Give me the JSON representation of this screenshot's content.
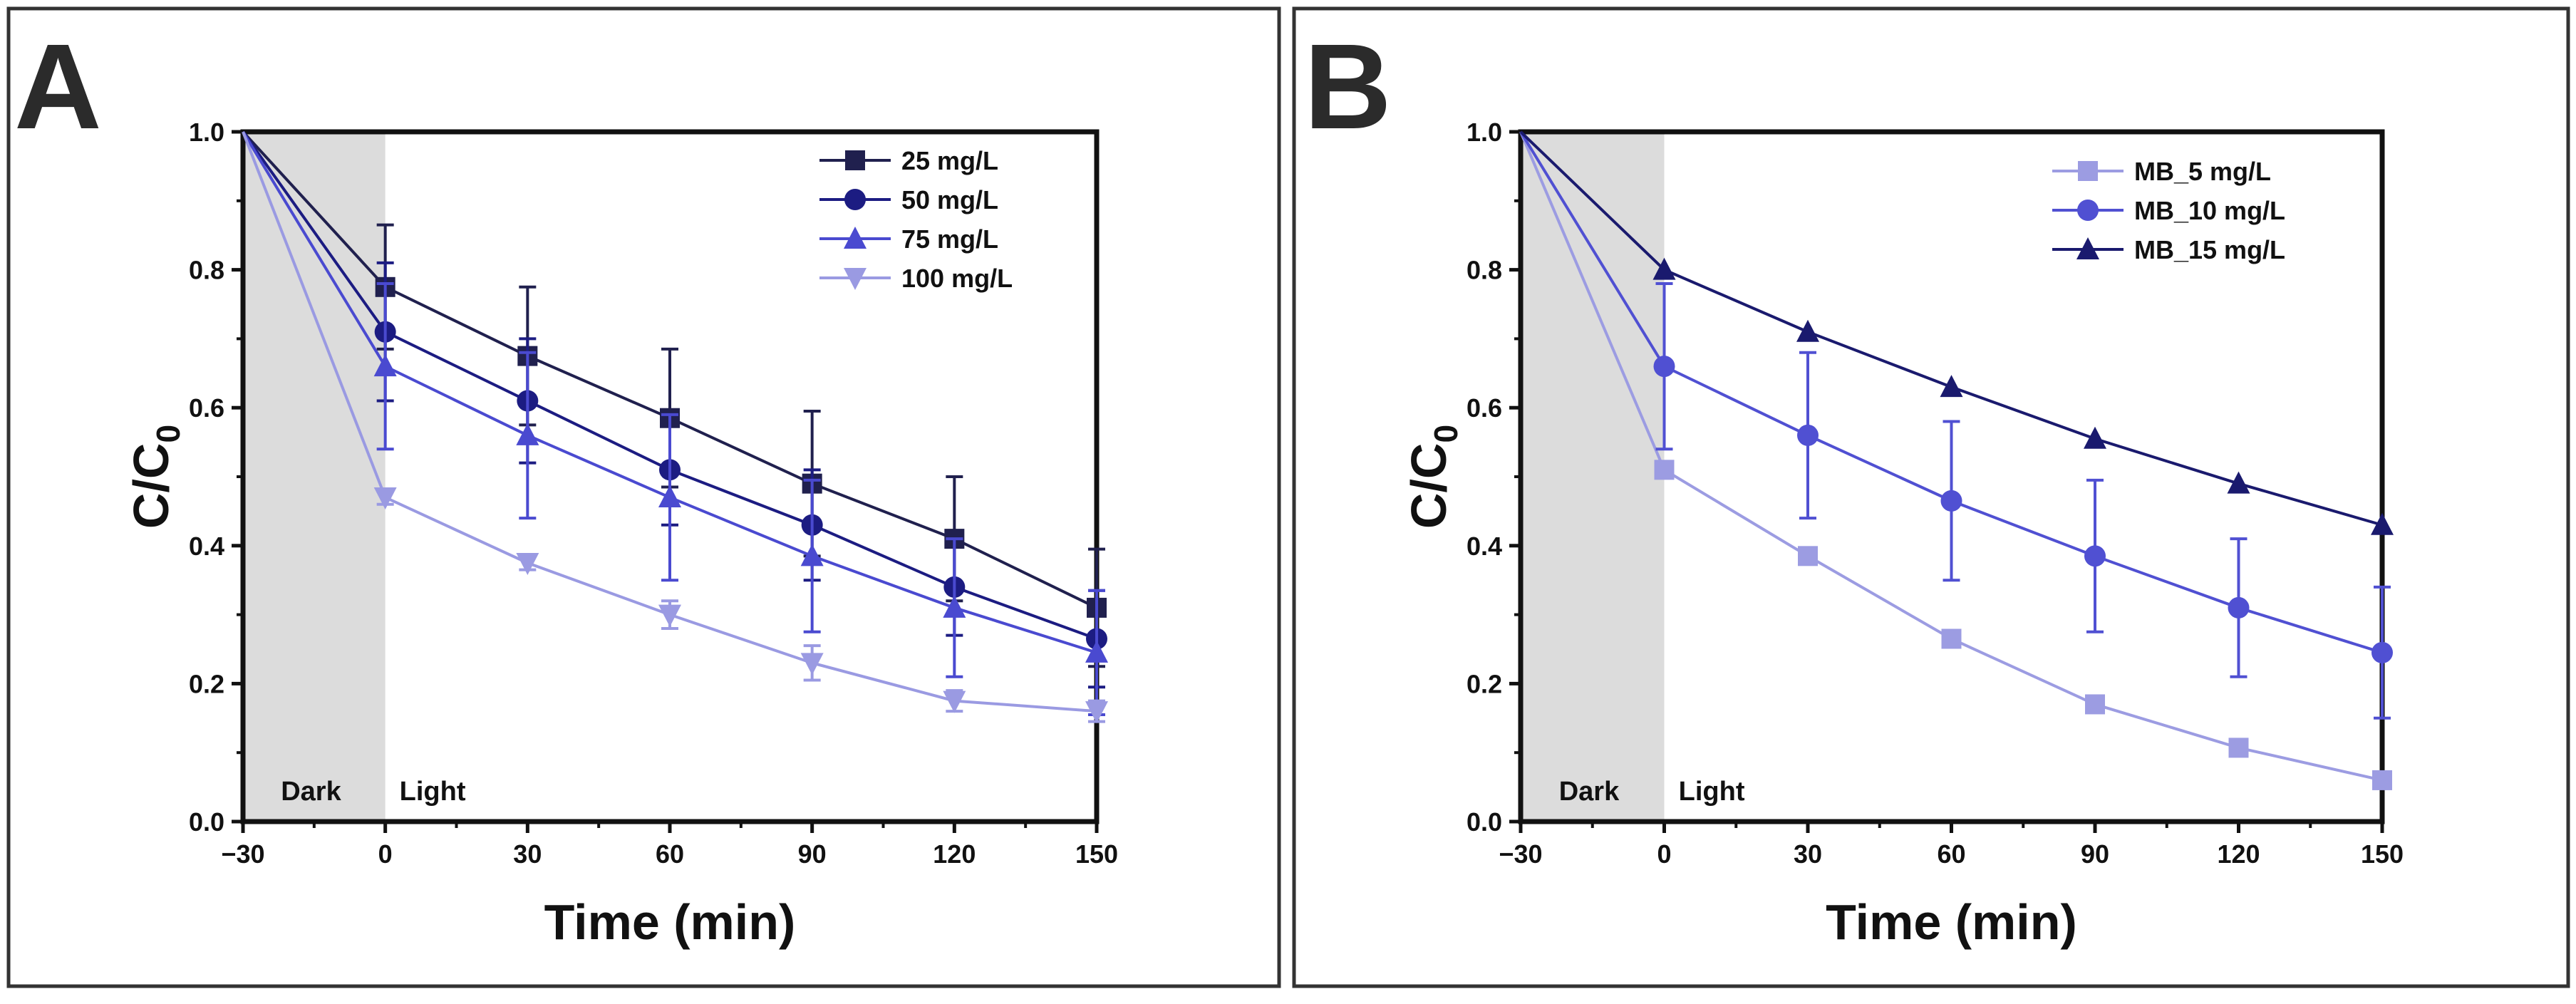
{
  "chart_data": [
    {
      "panel_label": "A",
      "type": "line",
      "xlabel": "Time (min)",
      "ylabel_main": "C/C",
      "ylabel_sub": "0",
      "xlim": [
        -30,
        150
      ],
      "ylim": [
        0.0,
        1.0
      ],
      "xticks": [
        "−30",
        "0",
        "30",
        "60",
        "90",
        "120",
        "150"
      ],
      "xtick_values": [
        -30,
        0,
        30,
        60,
        90,
        120,
        150
      ],
      "yticks": [
        "0.0",
        "0.2",
        "0.4",
        "0.6",
        "0.8",
        "1.0"
      ],
      "ytick_values": [
        0,
        0.2,
        0.4,
        0.6,
        0.8,
        1.0
      ],
      "shaded_region": {
        "x": [
          -30,
          0
        ],
        "color": "#dcdcdc"
      },
      "annotations": [
        "Dark",
        "Light"
      ],
      "legend_position": "top-right",
      "x": [
        -30,
        0,
        30,
        60,
        90,
        120,
        150
      ],
      "series": [
        {
          "name": "25 mg/L",
          "marker": "square",
          "color": "#20204e",
          "values": [
            1.0,
            0.775,
            0.675,
            0.585,
            0.49,
            0.41,
            0.31
          ],
          "errors": [
            0,
            0.09,
            0.1,
            0.1,
            0.105,
            0.09,
            0.085
          ]
        },
        {
          "name": "50 mg/L",
          "marker": "circle",
          "color": "#1c1c82",
          "values": [
            1.0,
            0.71,
            0.61,
            0.51,
            0.43,
            0.34,
            0.265
          ],
          "errors": [
            0,
            0.1,
            0.09,
            0.08,
            0.08,
            0.07,
            0.07
          ]
        },
        {
          "name": "75 mg/L",
          "marker": "triangle-up",
          "color": "#4a4ad0",
          "values": [
            1.0,
            0.66,
            0.56,
            0.47,
            0.385,
            0.31,
            0.245
          ],
          "errors": [
            0,
            0.12,
            0.12,
            0.12,
            0.11,
            0.1,
            0.09
          ]
        },
        {
          "name": "100 mg/L",
          "marker": "triangle-down",
          "color": "#9a9ae2",
          "values": [
            1.0,
            0.47,
            0.375,
            0.3,
            0.23,
            0.175,
            0.16
          ],
          "errors": [
            0,
            0.01,
            0.01,
            0.02,
            0.025,
            0.015,
            0.015
          ]
        }
      ]
    },
    {
      "panel_label": "B",
      "type": "line",
      "xlabel": "Time (min)",
      "ylabel_main": "C/C",
      "ylabel_sub": "0",
      "xlim": [
        -30,
        150
      ],
      "ylim": [
        0.0,
        1.0
      ],
      "xticks": [
        "−30",
        "0",
        "30",
        "60",
        "90",
        "120",
        "150"
      ],
      "xtick_values": [
        -30,
        0,
        30,
        60,
        90,
        120,
        150
      ],
      "yticks": [
        "0.0",
        "0.2",
        "0.4",
        "0.6",
        "0.8",
        "1.0"
      ],
      "ytick_values": [
        0,
        0.2,
        0.4,
        0.6,
        0.8,
        1.0
      ],
      "shaded_region": {
        "x": [
          -30,
          0
        ],
        "color": "#dcdcdc"
      },
      "annotations": [
        "Dark",
        "Light"
      ],
      "legend_position": "top-right",
      "x": [
        -30,
        0,
        30,
        60,
        90,
        120,
        150
      ],
      "series": [
        {
          "name": "MB_5 mg/L",
          "marker": "square",
          "color": "#9c9ce2",
          "values": [
            1.0,
            0.51,
            0.385,
            0.265,
            0.17,
            0.107,
            0.06
          ],
          "errors": [
            0,
            0,
            0,
            0,
            0,
            0,
            0
          ]
        },
        {
          "name": "MB_10 mg/L",
          "marker": "circle",
          "color": "#5050d2",
          "values": [
            1.0,
            0.66,
            0.56,
            0.465,
            0.385,
            0.31,
            0.245
          ],
          "errors": [
            0,
            0.12,
            0.12,
            0.115,
            0.11,
            0.1,
            0.095
          ]
        },
        {
          "name": "MB_15 mg/L",
          "marker": "triangle-up",
          "color": "#1a1a6e",
          "values": [
            1.0,
            0.8,
            0.71,
            0.63,
            0.555,
            0.49,
            0.43
          ],
          "errors": [
            0,
            0,
            0,
            0,
            0,
            0,
            0
          ]
        }
      ]
    }
  ]
}
